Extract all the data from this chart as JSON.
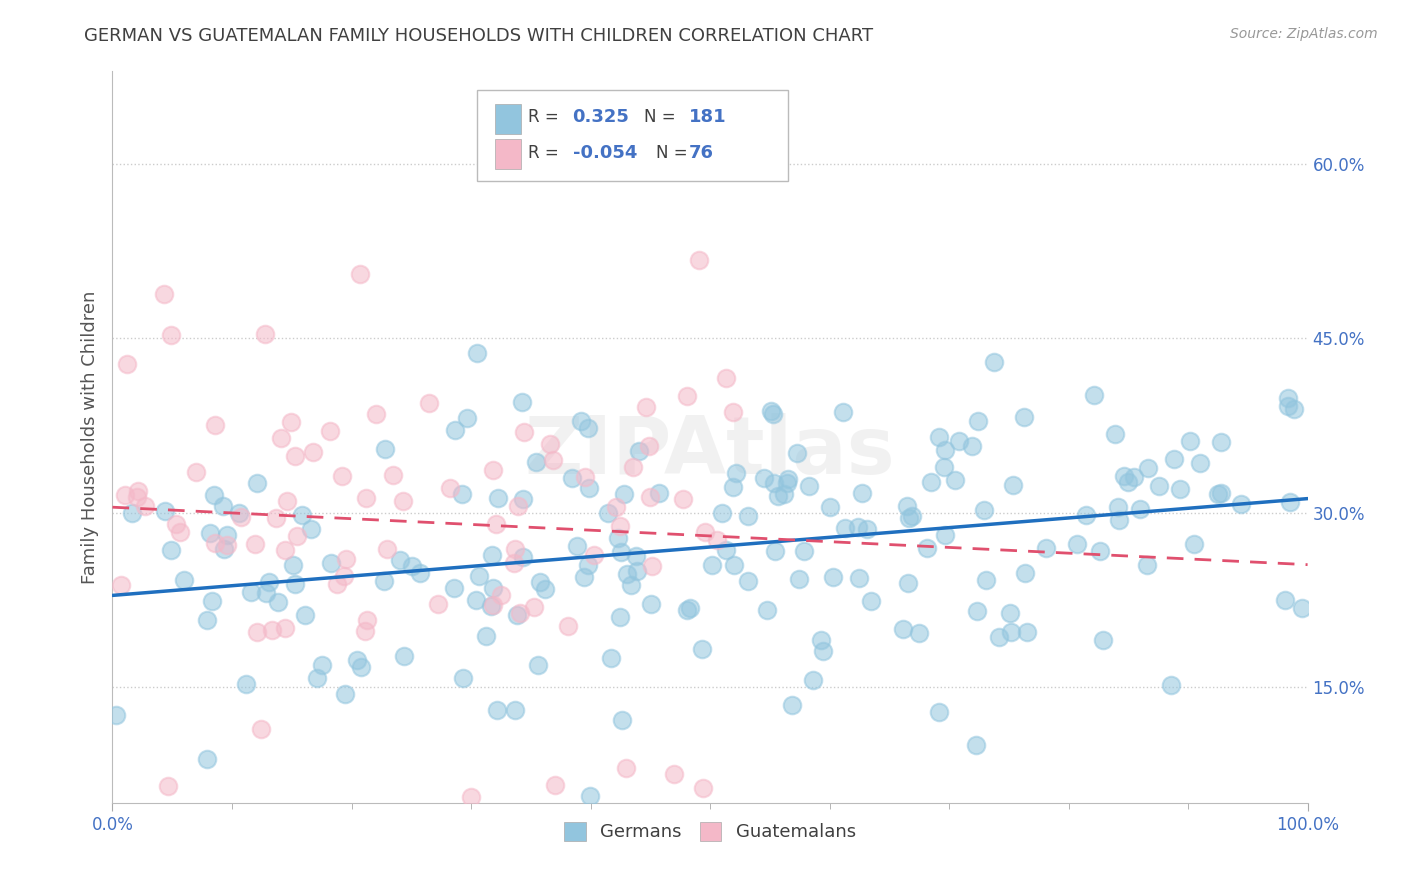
{
  "title": "GERMAN VS GUATEMALAN FAMILY HOUSEHOLDS WITH CHILDREN CORRELATION CHART",
  "source": "Source: ZipAtlas.com",
  "ylabel": "Family Households with Children",
  "xlabel": "",
  "xlim": [
    0,
    100
  ],
  "ylim": [
    5,
    68
  ],
  "yticks": [
    15.0,
    30.0,
    45.0,
    60.0
  ],
  "xticks": [
    0.0,
    100.0
  ],
  "xticks_minor": [
    10,
    20,
    30,
    40,
    50,
    60,
    70,
    80,
    90
  ],
  "german_color": "#92c5de",
  "guatemalan_color": "#f4b8c8",
  "german_line_color": "#1f6fbf",
  "guatemalan_line_color": "#e0506e",
  "watermark": "ZIPAtlas",
  "german_R": 0.325,
  "german_N": 181,
  "guatemalan_R": -0.054,
  "guatemalan_N": 76,
  "background_color": "#ffffff",
  "grid_color": "#cccccc",
  "title_color": "#404040",
  "ylabel_color": "#555555",
  "tick_color": "#4472c4",
  "legend_label1": "Germans",
  "legend_label2": "Guatemalans",
  "legend_text_color": "#404040",
  "legend_value_color": "#4472c4"
}
